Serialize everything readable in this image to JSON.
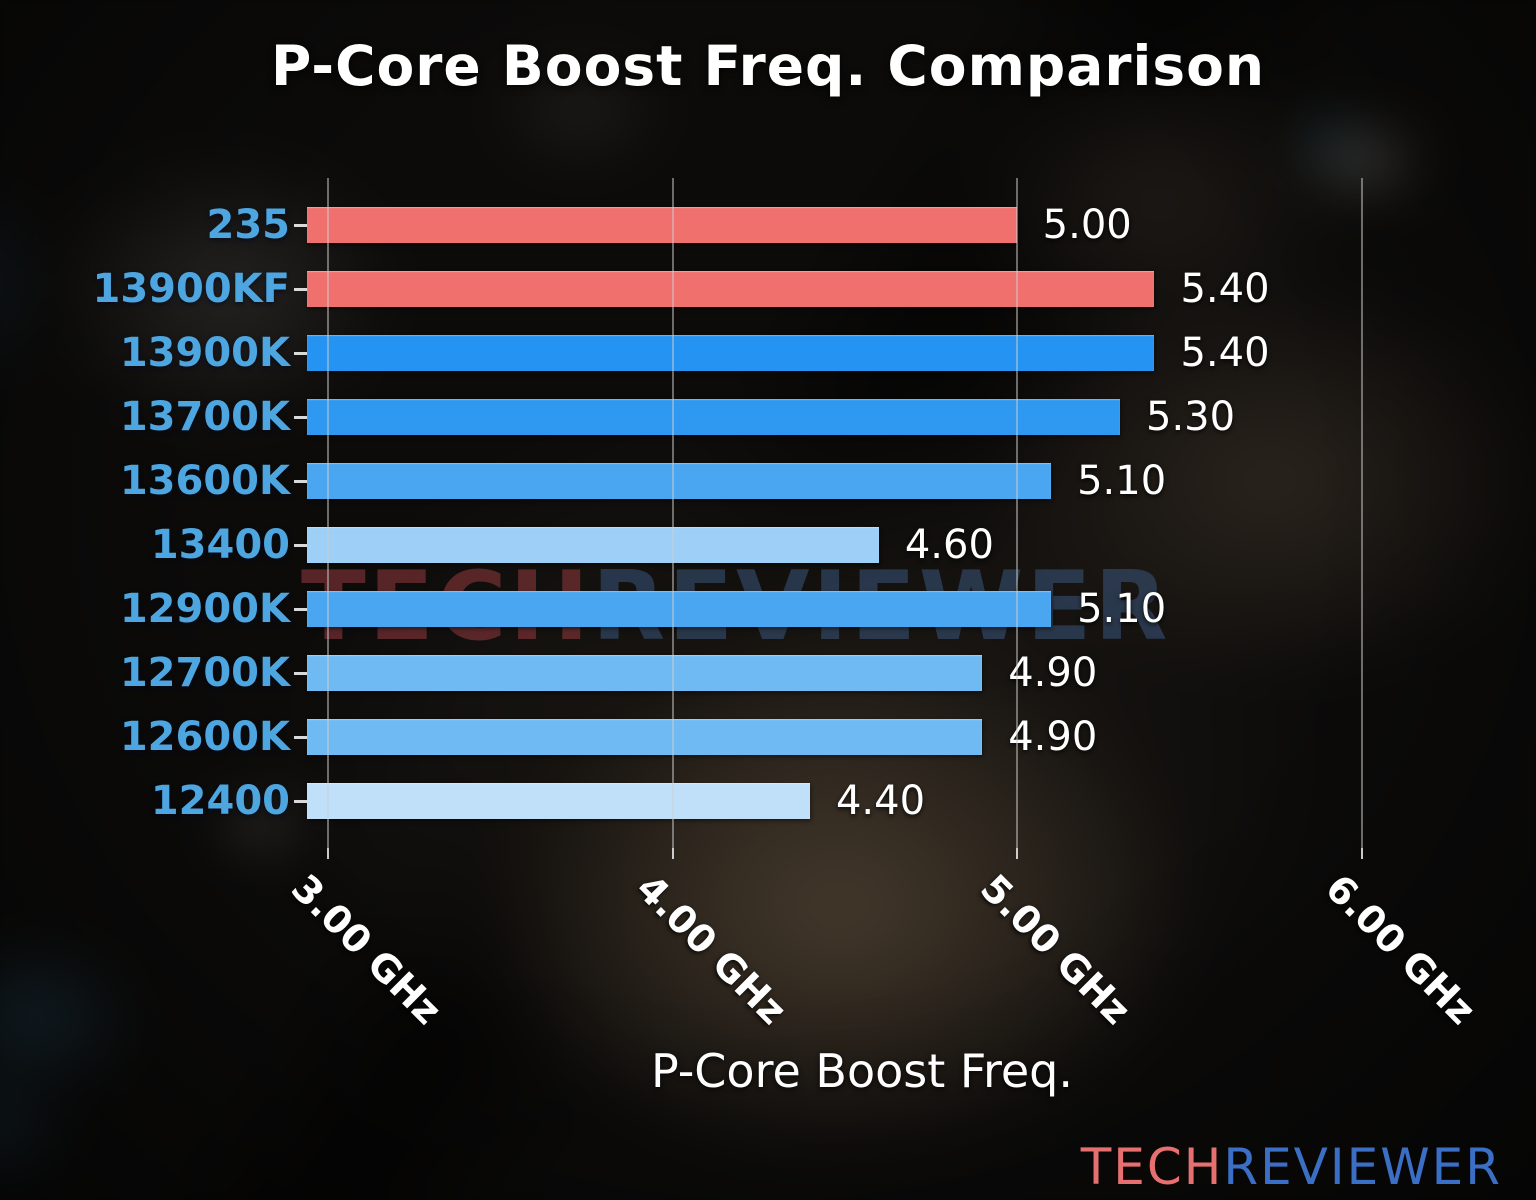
{
  "title": "P-Core Boost Freq. Comparison",
  "xlabel": "P-Core Boost Freq.",
  "watermark": {
    "part1": "TECH",
    "part2": "REVIEWER"
  },
  "logo": {
    "part1": "TECH",
    "part2": "REVIEWER"
  },
  "colors": {
    "red_bar": "#f0706e",
    "category_label": "#4da6e0",
    "logo_red": "#e5706f",
    "logo_blue": "#3b6fc6"
  },
  "chart_data": {
    "type": "bar",
    "orientation": "horizontal",
    "title": "P-Core Boost Freq. Comparison",
    "xlabel": "P-Core Boost Freq.",
    "categories": [
      "235",
      "13900KF",
      "13900K",
      "13700K",
      "13600K",
      "13400",
      "12900K",
      "12700K",
      "12600K",
      "12400"
    ],
    "values": [
      5.0,
      5.4,
      5.4,
      5.3,
      5.1,
      4.6,
      5.1,
      4.9,
      4.9,
      4.4
    ],
    "value_labels": [
      "5.00",
      "5.40",
      "5.40",
      "5.30",
      "5.10",
      "4.60",
      "5.10",
      "4.90",
      "4.90",
      "4.40"
    ],
    "bar_colors": [
      "#f0706e",
      "#f0706e",
      "#2493f2",
      "#2f99f1",
      "#4aa6f0",
      "#9ecff6",
      "#4aa6f0",
      "#6fbaf3",
      "#6fbaf3",
      "#c0e0fa"
    ],
    "unit": "GHz",
    "x_ticks": [
      "3.00 GHz",
      "4.00 GHz",
      "5.00 GHz",
      "6.00 GHz"
    ],
    "x_tick_values": [
      3,
      4,
      5,
      6
    ],
    "xlim": [
      2.94,
      6.2
    ],
    "grid": true,
    "legend": "none"
  }
}
